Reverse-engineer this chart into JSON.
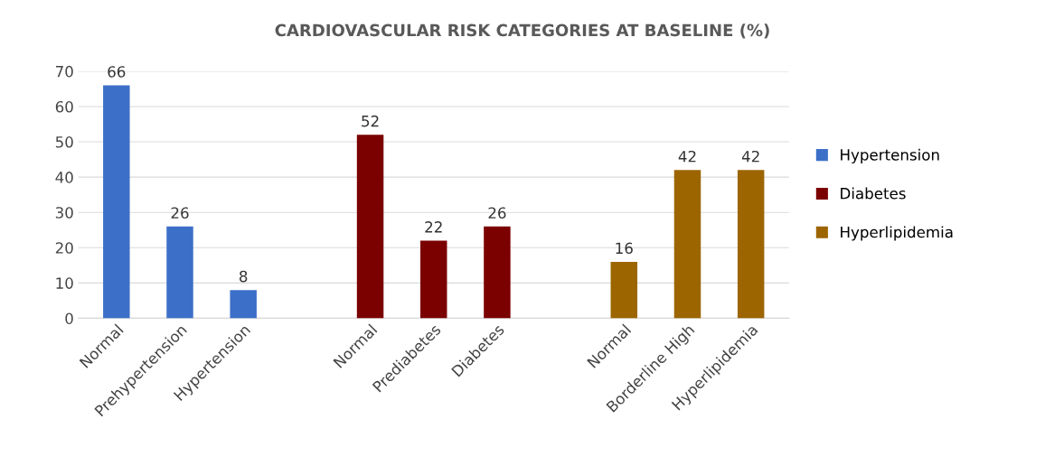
{
  "chart_data": {
    "type": "bar",
    "title": "CARDIOVASCULAR RISK CATEGORIES AT BASELINE (%)",
    "categories": [
      "Normal",
      "Prehypertension",
      "Hypertension",
      null,
      "Normal",
      "Prediabetes",
      "Diabetes",
      null,
      "Normal",
      "Borderline High",
      "Hyperlipidemia"
    ],
    "series": [
      {
        "name": "Hypertension",
        "color": "#3c6fc8",
        "values": [
          66,
          26,
          8,
          null,
          null,
          null,
          null,
          null,
          null,
          null,
          null
        ]
      },
      {
        "name": "Diabetes",
        "color": "#7b0000",
        "values": [
          null,
          null,
          null,
          null,
          52,
          22,
          26,
          null,
          null,
          null,
          null
        ]
      },
      {
        "name": "Hyperlipidemia",
        "color": "#9c6500",
        "values": [
          null,
          null,
          null,
          null,
          null,
          null,
          null,
          null,
          16,
          42,
          42
        ]
      }
    ],
    "ylim": [
      0,
      70
    ],
    "yticks": [
      0,
      10,
      20,
      30,
      40,
      50,
      60,
      70
    ],
    "grid": "y",
    "legend": "right",
    "data_labels": true
  }
}
